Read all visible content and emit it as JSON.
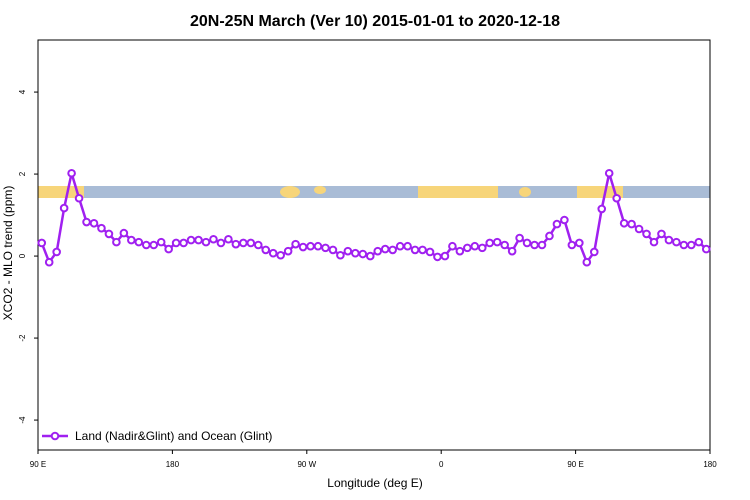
{
  "chart_data": {
    "type": "line",
    "title": "20N-25N March (Ver 10)   2015-01-01 to 2020-12-18",
    "x_label": "Longitude (deg E)",
    "y_label": "XCO2 - MLO trend (ppm)",
    "xlim": [
      90,
      540
    ],
    "ylim": [
      -4.73,
      5.27
    ],
    "xticks": [
      {
        "value": 90,
        "label": "90 E"
      },
      {
        "value": 180,
        "label": "180"
      },
      {
        "value": 270,
        "label": "90 W"
      },
      {
        "value": 360,
        "label": "0"
      },
      {
        "value": 450,
        "label": "90 E"
      },
      {
        "value": 540,
        "label": "180"
      }
    ],
    "yticks": [
      -4,
      -2,
      0,
      2,
      4
    ],
    "legend": "bottom-left",
    "x": [
      92.5,
      97.5,
      102.5,
      107.5,
      112.5,
      117.5,
      122.5,
      127.5,
      132.5,
      137.5,
      142.5,
      147.5,
      152.5,
      157.5,
      162.5,
      167.5,
      172.5,
      177.5,
      182.5,
      187.5,
      192.5,
      197.5,
      202.5,
      207.5,
      212.5,
      217.5,
      222.5,
      227.5,
      232.5,
      237.5,
      242.5,
      247.5,
      252.5,
      257.5,
      262.5,
      267.5,
      272.5,
      277.5,
      282.5,
      287.5,
      292.5,
      297.5,
      302.5,
      307.5,
      312.5,
      317.5,
      322.5,
      327.5,
      332.5,
      337.5,
      342.5,
      347.5,
      352.5,
      357.5,
      362.5,
      367.5,
      372.5,
      377.5,
      382.5,
      387.5,
      392.5,
      397.5,
      402.5,
      407.5,
      412.5,
      417.5,
      422.5,
      427.5,
      432.5,
      437.5,
      442.5,
      447.5,
      452.5,
      457.5,
      462.5,
      467.5,
      472.5,
      477.5,
      482.5,
      487.5,
      492.5,
      497.5,
      502.5,
      507.5,
      512.5,
      517.5,
      522.5,
      527.5,
      532.5,
      537.5
    ],
    "series": [
      {
        "name": "Land (Nadir&Glint) and Ocean (Glint)",
        "color": "#a020f0",
        "values": [
          0.32,
          -0.15,
          0.1,
          1.17,
          2.02,
          1.41,
          0.83,
          0.8,
          0.68,
          0.54,
          0.34,
          0.56,
          0.39,
          0.34,
          0.27,
          0.27,
          0.34,
          0.17,
          0.32,
          0.32,
          0.39,
          0.39,
          0.34,
          0.41,
          0.32,
          0.41,
          0.29,
          0.32,
          0.32,
          0.27,
          0.15,
          0.07,
          0.02,
          0.12,
          0.29,
          0.22,
          0.24,
          0.24,
          0.2,
          0.15,
          0.02,
          0.12,
          0.07,
          0.05,
          0,
          0.12,
          0.17,
          0.15,
          0.24,
          0.24,
          0.15,
          0.15,
          0.1,
          -0.02,
          0,
          0.24,
          0.12,
          0.2,
          0.24,
          0.2,
          0.32,
          0.34,
          0.27,
          0.12,
          0.44,
          0.32,
          0.27,
          0.27,
          0.49,
          0.78,
          0.88,
          0.27,
          0.32,
          -0.15,
          0.1,
          1.15,
          2.02,
          1.41,
          0.8,
          0.78,
          0.66,
          0.54,
          0.34,
          0.54,
          0.39,
          0.34,
          0.27,
          0.27,
          0.34,
          0.17
        ]
      }
    ]
  }
}
